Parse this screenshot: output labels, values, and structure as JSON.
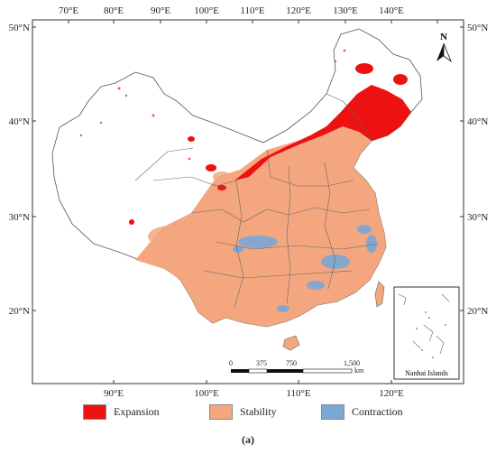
{
  "map": {
    "lon_top": [
      "70°E",
      "80°E",
      "90°E",
      "100°E",
      "110°E",
      "120°E",
      "130°E",
      "140°E"
    ],
    "lon_bottom": [
      "90°E",
      "100°E",
      "110°E",
      "120°E"
    ],
    "lat_left": [
      "50°N",
      "40°N",
      "30°N",
      "20°N"
    ],
    "lat_right": [
      "50°N",
      "40°N",
      "30°N",
      "20°N"
    ],
    "north_label": "N",
    "scale": {
      "ticks": [
        "0",
        "375",
        "750",
        "1,500"
      ],
      "unit": "km"
    },
    "inset_label": "Nanhai Islands"
  },
  "legend": [
    {
      "label": "Expansion",
      "color": "#ee1111"
    },
    {
      "label": "Stability",
      "color": "#f4a77f"
    },
    {
      "label": "Contraction",
      "color": "#7aa7d6"
    }
  ],
  "caption": "(a)"
}
